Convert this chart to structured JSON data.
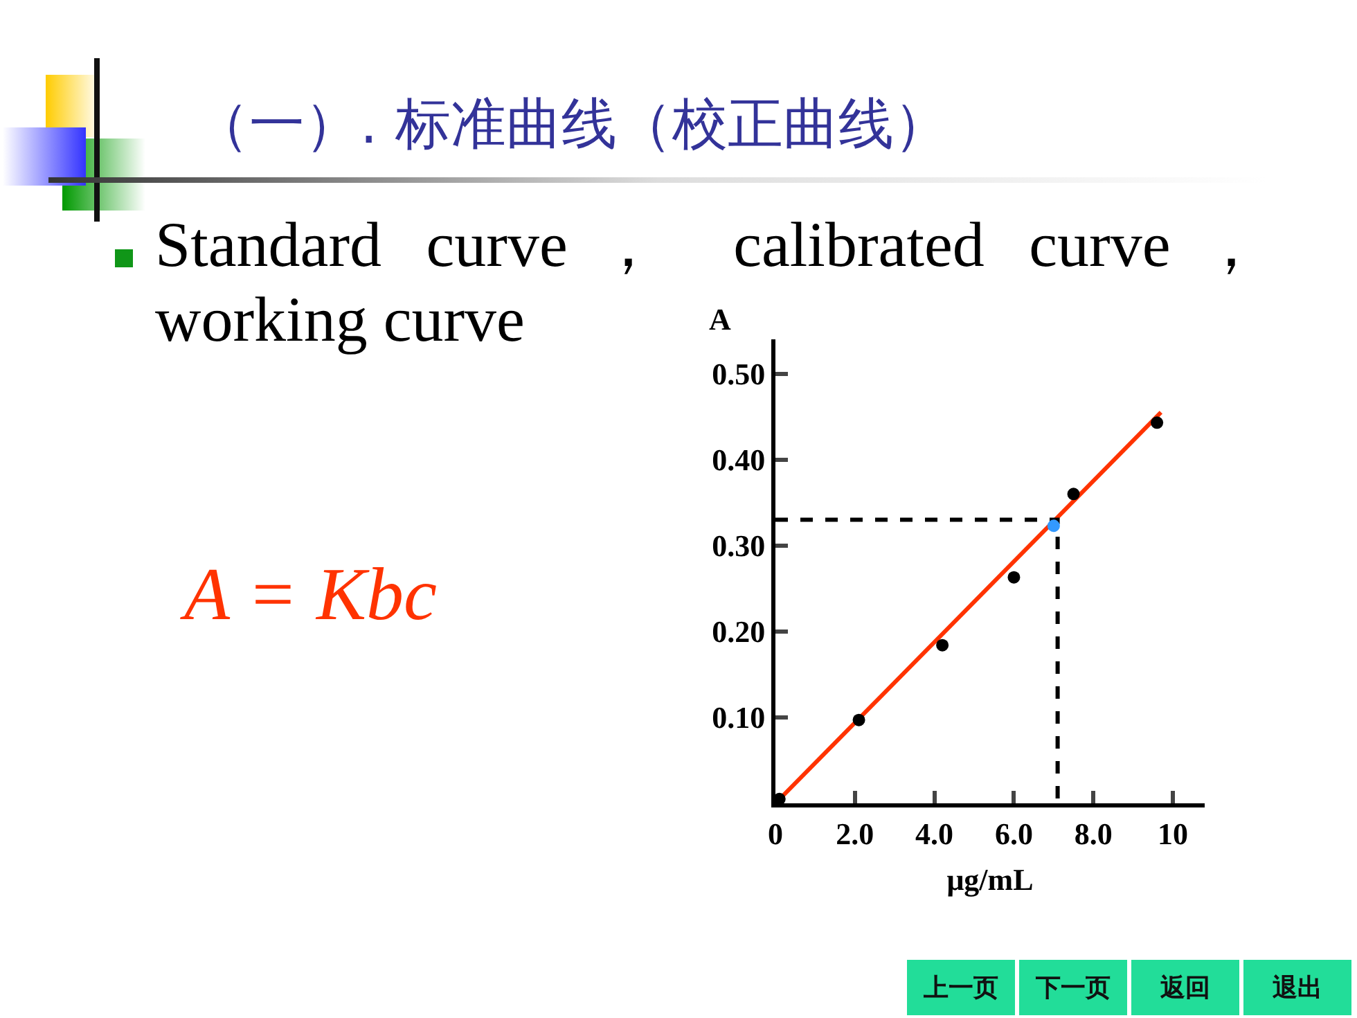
{
  "chart_data": {
    "type": "scatter",
    "title": "（一）. 标准曲线（校正曲线）",
    "subtitle": "Standard curve， calibrated curve， working curve",
    "xlabel": "μg/mL",
    "ylabel": "A",
    "xlim": [
      0,
      10.8
    ],
    "ylim": [
      0,
      0.54
    ],
    "xticks": [
      0,
      {
        "value": 2,
        "label": "2.0"
      },
      {
        "value": 4,
        "label": "4.0"
      },
      {
        "value": 6,
        "label": "6.0"
      },
      {
        "value": 8,
        "label": "8.0"
      },
      10
    ],
    "yticks": [
      {
        "value": 0,
        "label": null
      },
      {
        "value": 0.1,
        "label": "0.10"
      },
      {
        "value": 0.2,
        "label": "0.20"
      },
      {
        "value": 0.3,
        "label": "0.30"
      },
      {
        "value": 0.4,
        "label": "0.40"
      },
      {
        "value": 0.5,
        "label": "0.50"
      }
    ],
    "grid": false,
    "marker": "circle",
    "series": [
      {
        "type": "line",
        "color": "#ff3300",
        "x": [
          0,
          9.7
        ],
        "values": [
          0,
          0.455
        ],
        "line_style": "solid",
        "marker": "none"
      },
      {
        "type": "line",
        "color": "#000000",
        "x": [
          0,
          7.1,
          7.1
        ],
        "values": [
          0.33,
          0.33,
          0
        ],
        "line_style": "dashed",
        "marker": "none"
      },
      {
        "color": "#000000",
        "x": [
          0.1,
          2.1,
          4.2,
          6.0,
          7.5,
          9.6
        ],
        "values": [
          0.005,
          0.097,
          0.184,
          0.263,
          0.36,
          0.443
        ]
      },
      {
        "color": "#3399ff",
        "x": [
          7.0
        ],
        "values": [
          0.323
        ]
      }
    ],
    "annotations": [
      "A = Kbc",
      "上一页",
      "下一页",
      "返回",
      "退出"
    ]
  }
}
